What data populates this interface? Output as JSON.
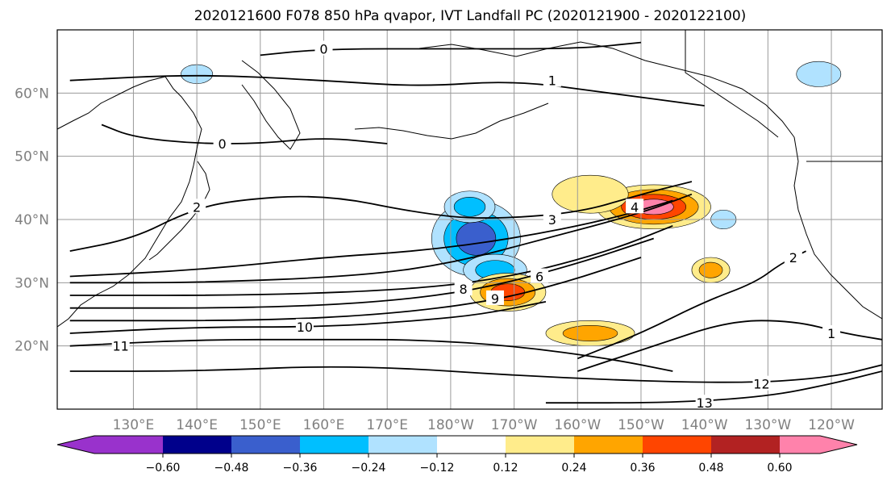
{
  "title": "2020121600 F078 850 hPa qvapor, IVT Landfall PC (2020121900 - 2020122100)",
  "map": {
    "lon_range": [
      118,
      248
    ],
    "lat_range": [
      10,
      70
    ]
  },
  "lat_labels": [
    {
      "lat": 60,
      "text": "60°N"
    },
    {
      "lat": 50,
      "text": "50°N"
    },
    {
      "lat": 40,
      "text": "40°N"
    },
    {
      "lat": 30,
      "text": "30°N"
    },
    {
      "lat": 20,
      "text": "20°N"
    }
  ],
  "lon_labels": [
    {
      "lon": 130,
      "text": "130°E"
    },
    {
      "lon": 140,
      "text": "140°E"
    },
    {
      "lon": 150,
      "text": "150°E"
    },
    {
      "lon": 160,
      "text": "160°E"
    },
    {
      "lon": 170,
      "text": "170°E"
    },
    {
      "lon": 180,
      "text": "180°W"
    },
    {
      "lon": 190,
      "text": "170°W"
    },
    {
      "lon": 200,
      "text": "160°W"
    },
    {
      "lon": 210,
      "text": "150°W"
    },
    {
      "lon": 220,
      "text": "140°W"
    },
    {
      "lon": 230,
      "text": "130°W"
    },
    {
      "lon": 240,
      "text": "120°W"
    }
  ],
  "colorbar": {
    "colors": [
      "#9932cc",
      "#00008b",
      "#3a5fcd",
      "#00bfff",
      "#b0e2ff",
      "#ffffff",
      "#ffec8b",
      "#ffa500",
      "#ff4500",
      "#b22222",
      "#ff82ab"
    ],
    "labels": [
      {
        "value": -0.6,
        "text": "−0.60"
      },
      {
        "value": -0.48,
        "text": "−0.48"
      },
      {
        "value": -0.36,
        "text": "−0.36"
      },
      {
        "value": -0.24,
        "text": "−0.24"
      },
      {
        "value": -0.12,
        "text": "−0.12"
      },
      {
        "value": 0.12,
        "text": "0.12"
      },
      {
        "value": 0.24,
        "text": "0.24"
      },
      {
        "value": 0.36,
        "text": "0.36"
      },
      {
        "value": 0.48,
        "text": "0.48"
      },
      {
        "value": 0.6,
        "text": "0.60"
      }
    ]
  },
  "anomalies": [
    {
      "name": "negative-anomaly-center",
      "lon": 184,
      "lat": 37,
      "rx": 7,
      "ry": 6,
      "level": 3
    },
    {
      "name": "negative-anomaly-north",
      "lon": 183,
      "lat": 42,
      "rx": 4,
      "ry": 2.5,
      "level": 2
    },
    {
      "name": "negative-anomaly-south",
      "lon": 187,
      "lat": 32,
      "rx": 5,
      "ry": 2.5,
      "level": 2
    },
    {
      "name": "positive-anomaly-east",
      "lon": 212,
      "lat": 42,
      "rx": 9,
      "ry": 3.5,
      "level": 4
    },
    {
      "name": "positive-anomaly-east-ext",
      "lon": 202,
      "lat": 44,
      "rx": 6,
      "ry": 3,
      "level": 1
    },
    {
      "name": "positive-anomaly-south",
      "lon": 189,
      "lat": 28.5,
      "rx": 6,
      "ry": 3,
      "level": 3
    },
    {
      "name": "positive-anomaly-tropics",
      "lon": 202,
      "lat": 22,
      "rx": 7,
      "ry": 2,
      "level": 2
    },
    {
      "name": "positive-anomaly-subtropics",
      "lon": 221,
      "lat": 32,
      "rx": 3,
      "ry": 2,
      "level": 2
    },
    {
      "name": "negative-anomaly-gulf",
      "lon": 238,
      "lat": 63,
      "rx": 3.5,
      "ry": 2,
      "level": 1
    },
    {
      "name": "negative-anomaly-bering",
      "lon": 140,
      "lat": 63,
      "rx": 2.5,
      "ry": 1.5,
      "level": 1
    },
    {
      "name": "negative-anomaly-alaska",
      "lon": 223,
      "lat": 40,
      "rx": 2,
      "ry": 1.5,
      "level": 1
    }
  ],
  "contours": [
    {
      "value": "1",
      "points": [
        [
          120,
          62
        ],
        [
          140,
          63
        ],
        [
          160,
          62
        ],
        [
          175,
          61
        ],
        [
          190,
          62
        ],
        [
          205,
          60
        ],
        [
          220,
          58
        ]
      ],
      "label_at": [
        196,
        62
      ]
    },
    {
      "value": "2",
      "points": [
        [
          120,
          35
        ],
        [
          130,
          37
        ],
        [
          138,
          41
        ],
        [
          145,
          43
        ],
        [
          160,
          44
        ],
        [
          175,
          41
        ],
        [
          185,
          40
        ],
        [
          200,
          41
        ],
        [
          210,
          44
        ],
        [
          218,
          46
        ]
      ],
      "label_at": [
        140,
        42
      ]
    },
    {
      "value": "3",
      "points": [
        [
          120,
          31
        ],
        [
          140,
          32
        ],
        [
          160,
          34
        ],
        [
          175,
          35
        ],
        [
          190,
          37
        ],
        [
          205,
          40
        ],
        [
          215,
          43
        ]
      ],
      "label_at": [
        196,
        40
      ]
    },
    {
      "value": "4",
      "points": [
        [
          120,
          30
        ],
        [
          140,
          30
        ],
        [
          165,
          31
        ],
        [
          180,
          33
        ],
        [
          195,
          37
        ],
        [
          210,
          41
        ],
        [
          218,
          44
        ]
      ],
      "label_at": [
        209,
        42
      ]
    },
    {
      "value": "6",
      "points": [
        [
          120,
          28
        ],
        [
          150,
          28
        ],
        [
          175,
          29
        ],
        [
          190,
          31
        ],
        [
          205,
          35
        ],
        [
          215,
          39
        ]
      ],
      "label_at": [
        194,
        31
      ]
    },
    {
      "value": "8",
      "points": [
        [
          120,
          26
        ],
        [
          150,
          26
        ],
        [
          170,
          27
        ],
        [
          185,
          29
        ],
        [
          200,
          33
        ],
        [
          212,
          37
        ]
      ],
      "label_at": [
        182,
        29
      ]
    },
    {
      "value": "9",
      "points": [
        [
          120,
          24
        ],
        [
          150,
          24
        ],
        [
          170,
          25
        ],
        [
          186,
          27
        ],
        [
          198,
          30
        ],
        [
          210,
          34
        ]
      ],
      "label_at": [
        187,
        27.5
      ]
    },
    {
      "value": "10",
      "points": [
        [
          120,
          22
        ],
        [
          140,
          23
        ],
        [
          160,
          23
        ],
        [
          175,
          24
        ],
        [
          185,
          25
        ],
        [
          195,
          27
        ]
      ],
      "label_at": [
        157,
        23
      ]
    },
    {
      "value": "11",
      "points": [
        [
          120,
          20
        ],
        [
          140,
          21
        ],
        [
          160,
          21
        ],
        [
          175,
          21
        ],
        [
          190,
          20
        ],
        [
          205,
          18
        ],
        [
          215,
          16
        ]
      ],
      "label_at": [
        128,
        20
      ]
    },
    {
      "value": "12",
      "points": [
        [
          120,
          16
        ],
        [
          140,
          16
        ],
        [
          165,
          17
        ],
        [
          195,
          15
        ],
        [
          225,
          14
        ],
        [
          240,
          15
        ],
        [
          248,
          17
        ]
      ],
      "label_at": [
        229,
        14
      ]
    },
    {
      "value": "13",
      "points": [
        [
          195,
          11
        ],
        [
          215,
          11
        ],
        [
          230,
          12
        ],
        [
          240,
          14
        ],
        [
          248,
          16
        ]
      ],
      "label_at": [
        220,
        11
      ]
    },
    {
      "value": "2",
      "points": [
        [
          200,
          18
        ],
        [
          210,
          22
        ],
        [
          220,
          27
        ],
        [
          228,
          30
        ],
        [
          232,
          33
        ],
        [
          236,
          35
        ]
      ],
      "label_at": [
        234,
        34
      ]
    },
    {
      "value": "1",
      "points": [
        [
          200,
          16
        ],
        [
          212,
          20
        ],
        [
          224,
          24
        ],
        [
          234,
          24
        ],
        [
          242,
          22
        ],
        [
          248,
          21
        ]
      ],
      "label_at": [
        240,
        22
      ]
    },
    {
      "value": "0",
      "points": [
        [
          125,
          55
        ],
        [
          130,
          53
        ],
        [
          140,
          52
        ],
        [
          150,
          52
        ],
        [
          160,
          53
        ],
        [
          170,
          52
        ]
      ],
      "label_at": [
        144,
        52
      ]
    },
    {
      "value": "0",
      "points": [
        [
          150,
          66
        ],
        [
          160,
          67
        ],
        [
          180,
          67
        ],
        [
          200,
          67
        ],
        [
          210,
          68
        ]
      ],
      "label_at": [
        160,
        67
      ]
    }
  ]
}
